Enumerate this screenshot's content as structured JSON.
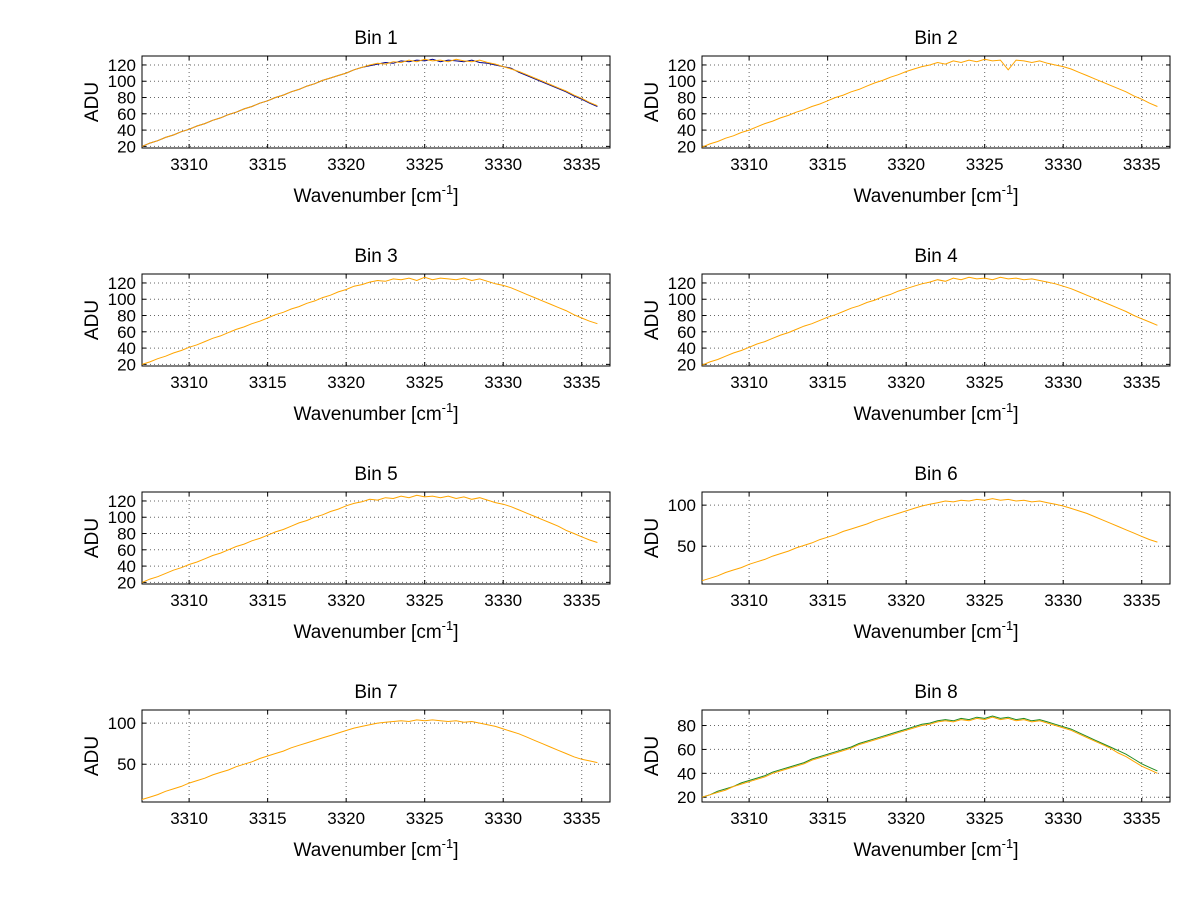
{
  "figure": {
    "background": "#ffffff",
    "axis_color": "#000000",
    "grid_color": "#666666"
  },
  "chart_data": {
    "type": "line",
    "layout": {
      "rows": 4,
      "cols": 2,
      "grid": "dotted",
      "legend": "none",
      "xlim": [
        3307,
        3336.8
      ]
    },
    "xlabel_main": "Wavenumber [cm",
    "xlabel_sup": "-1",
    "xlabel_end": "]",
    "ylabel": "ADU",
    "xticks": [
      3310,
      3315,
      3320,
      3325,
      3330,
      3335
    ],
    "x_start": 3307,
    "x_step": 0.5,
    "subplots": [
      {
        "title": "Bin 1",
        "ylim": [
          18,
          131
        ],
        "yticks": [
          20,
          40,
          60,
          80,
          100,
          120
        ],
        "series": [
          {
            "name": "overlay-trace",
            "color": "#00008b",
            "values": [
              20,
              24,
              27,
              31,
              34,
              38,
              41,
              45,
              48,
              52,
              55,
              59,
              62,
              66,
              69,
              73,
              76,
              80,
              83,
              87,
              90,
              94,
              97,
              101,
              104,
              107,
              110,
              114,
              117,
              119,
              121,
              123,
              122,
              125,
              124,
              126,
              125,
              127,
              124,
              126,
              125,
              124,
              126,
              123,
              122,
              120,
              118,
              116,
              111,
              107,
              103,
              99,
              95,
              91,
              87,
              82,
              78,
              73,
              69
            ]
          },
          {
            "name": "main-trace",
            "color": "#ffa500",
            "values": [
              20,
              24,
              27,
              31,
              34,
              38,
              41,
              45,
              48,
              52,
              55,
              59,
              62,
              66,
              69,
              73,
              76,
              80,
              83,
              87,
              90,
              94,
              97,
              101,
              104,
              107,
              110,
              114,
              117,
              120,
              122,
              121,
              124,
              123,
              126,
              124,
              127,
              125,
              126,
              124,
              127,
              125,
              124,
              126,
              123,
              121,
              118,
              115,
              112,
              108,
              104,
              100,
              96,
              92,
              88,
              83,
              79,
              74,
              70
            ]
          }
        ]
      },
      {
        "title": "Bin 2",
        "ylim": [
          18,
          131
        ],
        "yticks": [
          20,
          40,
          60,
          80,
          100,
          120
        ],
        "series": [
          {
            "name": "main-trace",
            "color": "#ffa500",
            "values": [
              19,
              23,
              26,
              30,
              33,
              37,
              40,
              44,
              48,
              51,
              55,
              58,
              62,
              65,
              69,
              72,
              76,
              80,
              83,
              87,
              90,
              94,
              98,
              101,
              105,
              108,
              112,
              115,
              118,
              120,
              123,
              121,
              125,
              123,
              126,
              124,
              127,
              125,
              126,
              114,
              126,
              125,
              123,
              125,
              122,
              120,
              118,
              115,
              111,
              107,
              103,
              99,
              95,
              91,
              87,
              82,
              78,
              73,
              69
            ]
          }
        ]
      },
      {
        "title": "Bin 3",
        "ylim": [
          18,
          131
        ],
        "yticks": [
          20,
          40,
          60,
          80,
          100,
          120
        ],
        "series": [
          {
            "name": "main-trace",
            "color": "#ffa500",
            "values": [
              20,
              23,
              27,
              30,
              34,
              37,
              41,
              44,
              48,
              52,
              55,
              59,
              63,
              66,
              70,
              73,
              77,
              81,
              84,
              88,
              91,
              95,
              98,
              102,
              105,
              109,
              112,
              116,
              118,
              121,
              123,
              122,
              125,
              124,
              126,
              123,
              127,
              124,
              126,
              125,
              124,
              126,
              123,
              125,
              122,
              119,
              117,
              114,
              110,
              106,
              102,
              98,
              94,
              90,
              86,
              81,
              77,
              73,
              70
            ]
          }
        ]
      },
      {
        "title": "Bin 4",
        "ylim": [
          18,
          131
        ],
        "yticks": [
          20,
          40,
          60,
          80,
          100,
          120
        ],
        "series": [
          {
            "name": "main-trace",
            "color": "#ffa500",
            "values": [
              19,
              23,
              26,
              30,
              34,
              37,
              41,
              45,
              48,
              52,
              56,
              59,
              63,
              67,
              70,
              74,
              78,
              81,
              85,
              89,
              92,
              96,
              99,
              103,
              106,
              110,
              113,
              116,
              119,
              121,
              124,
              122,
              126,
              124,
              127,
              125,
              126,
              124,
              127,
              125,
              126,
              124,
              125,
              123,
              121,
              119,
              116,
              113,
              109,
              105,
              101,
              97,
              93,
              89,
              85,
              80,
              76,
              72,
              68
            ]
          }
        ]
      },
      {
        "title": "Bin 5",
        "ylim": [
          18,
          131
        ],
        "yticks": [
          20,
          40,
          60,
          80,
          100,
          120
        ],
        "series": [
          {
            "name": "main-trace",
            "color": "#ffa500",
            "values": [
              20,
              24,
              27,
              31,
              35,
              38,
              42,
              45,
              49,
              53,
              56,
              60,
              64,
              67,
              71,
              74,
              78,
              82,
              85,
              89,
              93,
              96,
              100,
              103,
              107,
              110,
              114,
              117,
              119,
              122,
              121,
              124,
              123,
              126,
              124,
              127,
              125,
              126,
              124,
              126,
              123,
              125,
              122,
              124,
              121,
              118,
              116,
              113,
              109,
              105,
              101,
              97,
              93,
              89,
              84,
              80,
              76,
              72,
              69
            ]
          }
        ]
      },
      {
        "title": "Bin 6",
        "ylim": [
          4,
          116
        ],
        "yticks": [
          50,
          100
        ],
        "series": [
          {
            "name": "main-trace",
            "color": "#ffa500",
            "values": [
              8,
              11,
              14,
              18,
              21,
              24,
              28,
              31,
              34,
              38,
              41,
              44,
              48,
              51,
              54,
              58,
              61,
              64,
              68,
              71,
              74,
              77,
              81,
              84,
              87,
              90,
              93,
              96,
              99,
              101,
              103,
              105,
              104,
              106,
              105,
              107,
              106,
              108,
              106,
              107,
              105,
              106,
              104,
              105,
              103,
              101,
              99,
              96,
              93,
              90,
              86,
              82,
              78,
              74,
              70,
              66,
              62,
              58,
              55
            ]
          }
        ]
      },
      {
        "title": "Bin 7",
        "ylim": [
          4,
          116
        ],
        "yticks": [
          50,
          100
        ],
        "series": [
          {
            "name": "main-trace",
            "color": "#ffa500",
            "values": [
              7,
              10,
              13,
              17,
              20,
              23,
              27,
              30,
              33,
              37,
              40,
              43,
              47,
              50,
              53,
              57,
              60,
              63,
              66,
              70,
              73,
              76,
              79,
              82,
              85,
              88,
              91,
              94,
              96,
              98,
              100,
              101,
              102,
              103,
              102,
              104,
              103,
              104,
              103,
              102,
              103,
              101,
              102,
              100,
              98,
              96,
              93,
              90,
              87,
              83,
              79,
              75,
              71,
              67,
              63,
              59,
              56,
              54,
              52
            ]
          }
        ]
      },
      {
        "title": "Bin 8",
        "ylim": [
          16,
          93
        ],
        "yticks": [
          20,
          40,
          60,
          80
        ],
        "series": [
          {
            "name": "overlay-trace",
            "color": "#228b22",
            "values": [
              20,
              22,
              25,
              27,
              29,
              32,
              34,
              36,
              38,
              41,
              43,
              45,
              47,
              49,
              52,
              54,
              56,
              58,
              60,
              62,
              65,
              67,
              69,
              71,
              73,
              75,
              77,
              79,
              81,
              82,
              84,
              85,
              84,
              86,
              85,
              87,
              86,
              88,
              86,
              87,
              85,
              86,
              84,
              85,
              83,
              81,
              79,
              77,
              74,
              71,
              68,
              65,
              62,
              59,
              56,
              52,
              48,
              45,
              42
            ]
          },
          {
            "name": "main-trace",
            "color": "#ffa500",
            "values": [
              20,
              22,
              24,
              26,
              29,
              31,
              33,
              35,
              37,
              40,
              42,
              44,
              46,
              48,
              51,
              53,
              55,
              57,
              59,
              61,
              64,
              66,
              68,
              70,
              72,
              74,
              76,
              78,
              80,
              81,
              83,
              84,
              83,
              85,
              84,
              86,
              85,
              87,
              85,
              86,
              84,
              85,
              83,
              84,
              82,
              80,
              78,
              76,
              73,
              70,
              67,
              64,
              61,
              57,
              54,
              50,
              46,
              43,
              40
            ]
          }
        ]
      }
    ]
  }
}
